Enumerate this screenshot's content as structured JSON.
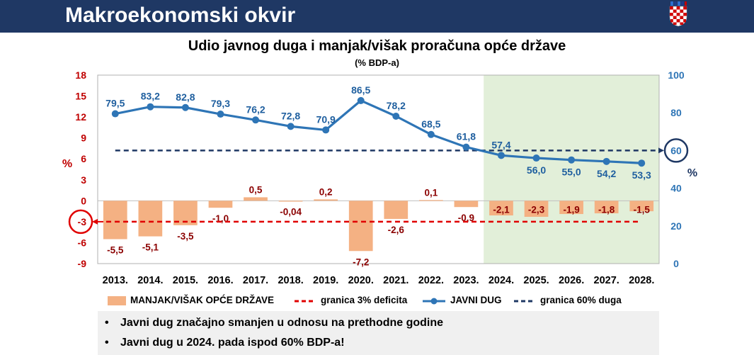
{
  "header": {
    "title": "Makroekonomski okvir",
    "crest_icon": "croatian-coat-of-arms-icon"
  },
  "chart_data": {
    "type": "bar+line",
    "title": "Udio javnog duga i manjak/višak proračuna opće države",
    "subtitle": "(% BDP-a)",
    "categories": [
      "2013.",
      "2014.",
      "2015.",
      "2016.",
      "2017.",
      "2018.",
      "2019.",
      "2020.",
      "2021.",
      "2022.",
      "2023.",
      "2024.",
      "2025.",
      "2026.",
      "2027.",
      "2028."
    ],
    "left_axis": {
      "label": "%",
      "ylim": [
        -9,
        18
      ],
      "ticks": [
        "18",
        "15",
        "12",
        "9",
        "6",
        "3",
        "0",
        "-3",
        "-6",
        "-9"
      ],
      "highlight_tick": "-3",
      "color": "#c00000"
    },
    "right_axis": {
      "label": "%",
      "ylim": [
        0,
        100
      ],
      "ticks": [
        "100",
        "80",
        "60",
        "40",
        "20",
        "0"
      ],
      "highlight_tick": "60",
      "color": "#2e75b6"
    },
    "projection_shaded_from": "2024.",
    "series": [
      {
        "name": "MANJAK/VIŠAK OPĆE DRŽAVE",
        "type": "bar",
        "axis": "left",
        "color": "#f4b183",
        "values": [
          -5.5,
          -5.1,
          -3.5,
          -1.0,
          0.5,
          -0.04,
          0.2,
          -7.2,
          -2.6,
          0.1,
          -0.9,
          -2.1,
          -2.3,
          -1.9,
          -1.8,
          -1.5
        ],
        "labels": [
          "-5,5",
          "-5,1",
          "-3,5",
          "-1,0",
          "0,5",
          "-0,04",
          "0,2",
          "-7,2",
          "-2,6",
          "0,1",
          "-0,9",
          "-2,1",
          "-2,3",
          "-1,9",
          "-1,8",
          "-1,5"
        ]
      },
      {
        "name": "granica 3% deficita",
        "type": "dashed-line",
        "axis": "left",
        "color": "#e00000",
        "value": -3
      },
      {
        "name": "JAVNI DUG",
        "type": "line",
        "axis": "right",
        "color": "#2e75b6",
        "values": [
          79.5,
          83.2,
          82.8,
          79.3,
          76.2,
          72.8,
          70.9,
          86.5,
          78.2,
          68.5,
          61.8,
          57.4,
          56.0,
          55.0,
          54.2,
          53.3
        ],
        "labels": [
          "79,5",
          "83,2",
          "82,8",
          "79,3",
          "76,2",
          "72,8",
          "70,9",
          "86,5",
          "78,2",
          "68,5",
          "61,8",
          "57,4",
          "56,0",
          "55,0",
          "54,2",
          "53,3"
        ]
      },
      {
        "name": "granica 60% duga",
        "type": "dashed-line",
        "axis": "right",
        "color": "#1f3864",
        "value": 60
      }
    ]
  },
  "legend": {
    "bar_label": "MANJAK/VIŠAK OPĆE DRŽAVE",
    "deficit_limit_label": "granica 3% deficita",
    "debt_label": "JAVNI DUG",
    "debt_limit_label": "granica 60% duga"
  },
  "notes": [
    "Javni dug značajno smanjen u odnosu na prethodne godine",
    "Javni dug u 2024. pada ispod 60% BDP-a!"
  ]
}
